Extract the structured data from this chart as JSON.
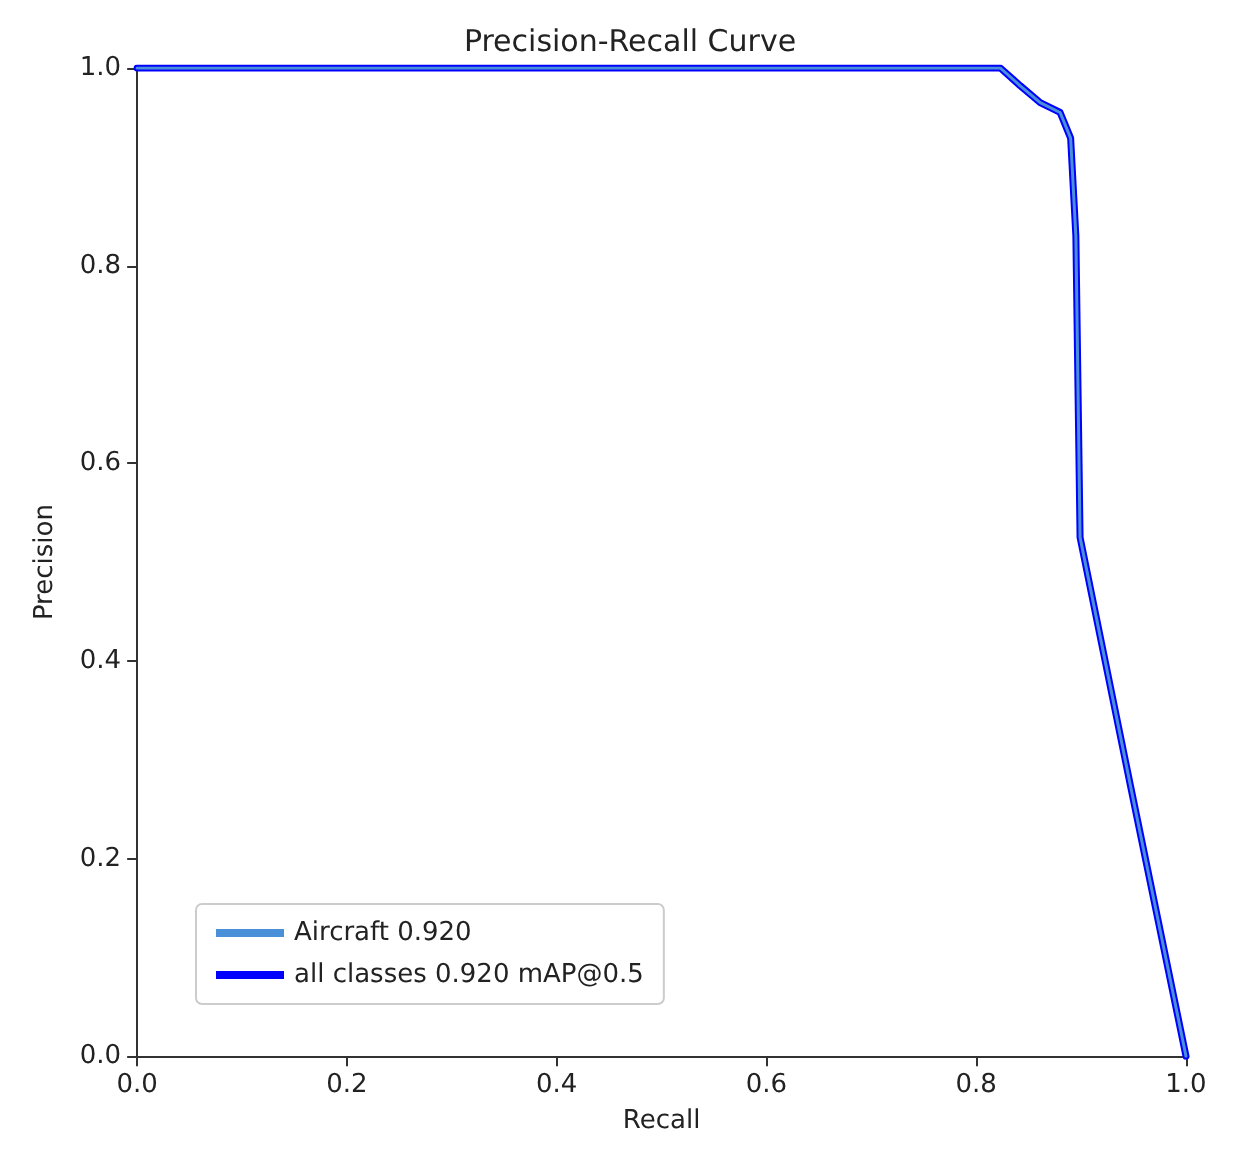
{
  "chart_data": {
    "type": "line",
    "title": "Precision-Recall Curve",
    "xlabel": "Recall",
    "ylabel": "Precision",
    "xlim": [
      0,
      1
    ],
    "ylim": [
      0,
      1
    ],
    "xticks": [
      {
        "value": 0,
        "label": "0.0"
      },
      0.2,
      0.4,
      0.6,
      0.8,
      {
        "value": 1,
        "label": "1.0"
      }
    ],
    "yticks": [
      {
        "value": 0,
        "label": "0.0"
      },
      0.2,
      0.4,
      0.6,
      0.8,
      {
        "value": 1,
        "label": "1.0"
      }
    ],
    "grid": false,
    "legend": "bottom left",
    "marker": "none",
    "line_style": "solid",
    "series": [
      {
        "name": "Aircraft 0.920",
        "color": "#4a90d9",
        "x": [
          0,
          0.823,
          0.842,
          0.861,
          0.88,
          0.89,
          0.895,
          0.899,
          0.947,
          1
        ],
        "values": [
          1,
          1,
          0.982,
          0.965,
          0.955,
          0.929,
          0.83,
          0.525,
          0.274,
          0
        ]
      },
      {
        "name": "all classes 0.920 mAP@0.5",
        "color": "#0000ff",
        "x": [
          0,
          0.823,
          0.842,
          0.861,
          0.88,
          0.89,
          0.895,
          0.899,
          0.947,
          1
        ],
        "values": [
          1,
          1,
          0.982,
          0.965,
          0.955,
          0.929,
          0.83,
          0.525,
          0.274,
          0
        ]
      }
    ]
  }
}
